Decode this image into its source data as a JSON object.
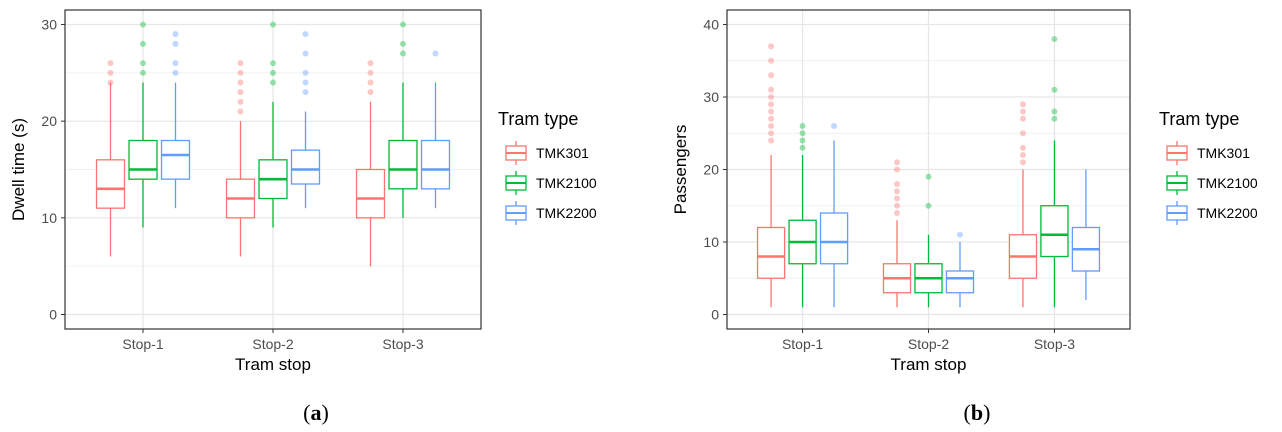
{
  "chart_data": [
    {
      "type": "box",
      "panel_label": "a",
      "xlabel": "Tram stop",
      "ylabel": "Dwell time (s)",
      "ylim": [
        -1.5,
        31.5
      ],
      "yticks": [
        0,
        10,
        20,
        30
      ],
      "categories": [
        "Stop-1",
        "Stop-2",
        "Stop-3"
      ],
      "legend_title": "Tram type",
      "legend_position": "right",
      "grid": true,
      "series": [
        {
          "name": "TMK301",
          "color": "#F8766D",
          "boxes": [
            {
              "min": 6,
              "q1": 11,
              "median": 13,
              "q3": 16,
              "max": 24,
              "outliers": [
                24,
                25,
                26
              ]
            },
            {
              "min": 6,
              "q1": 10,
              "median": 12,
              "q3": 14,
              "max": 20,
              "outliers": [
                21,
                22,
                23,
                24,
                25,
                26
              ]
            },
            {
              "min": 5,
              "q1": 10,
              "median": 12,
              "q3": 15,
              "max": 22,
              "outliers": [
                23,
                24,
                25,
                26
              ]
            }
          ]
        },
        {
          "name": "TMK2100",
          "color": "#00BA38",
          "boxes": [
            {
              "min": 9,
              "q1": 14,
              "median": 15,
              "q3": 18,
              "max": 24,
              "outliers": [
                25,
                26,
                28,
                30
              ]
            },
            {
              "min": 9,
              "q1": 12,
              "median": 14,
              "q3": 16,
              "max": 22,
              "outliers": [
                24,
                25,
                26,
                30
              ]
            },
            {
              "min": 10,
              "q1": 13,
              "median": 15,
              "q3": 18,
              "max": 24,
              "outliers": [
                27,
                28,
                30
              ]
            }
          ]
        },
        {
          "name": "TMK2200",
          "color": "#619CFF",
          "boxes": [
            {
              "min": 11,
              "q1": 14,
              "median": 16.5,
              "q3": 18,
              "max": 24,
              "outliers": [
                25,
                26,
                28,
                29
              ]
            },
            {
              "min": 11,
              "q1": 13.5,
              "median": 15,
              "q3": 17,
              "max": 21,
              "outliers": [
                23,
                24,
                25,
                27,
                29
              ]
            },
            {
              "min": 11,
              "q1": 13,
              "median": 15,
              "q3": 18,
              "max": 24,
              "outliers": [
                27
              ]
            }
          ]
        }
      ]
    },
    {
      "type": "box",
      "panel_label": "b",
      "xlabel": "Tram stop",
      "ylabel": "Passengers",
      "ylim": [
        -2,
        42
      ],
      "yticks": [
        0,
        10,
        20,
        30,
        40
      ],
      "categories": [
        "Stop-1",
        "Stop-2",
        "Stop-3"
      ],
      "legend_title": "Tram type",
      "legend_position": "right",
      "grid": true,
      "series": [
        {
          "name": "TMK301",
          "color": "#F8766D",
          "boxes": [
            {
              "min": 1,
              "q1": 5,
              "median": 8,
              "q3": 12,
              "max": 22,
              "outliers": [
                24,
                25,
                26,
                27,
                28,
                29,
                30,
                31,
                33,
                35,
                37
              ]
            },
            {
              "min": 1,
              "q1": 3,
              "median": 5,
              "q3": 7,
              "max": 13,
              "outliers": [
                14,
                15,
                16,
                17,
                18,
                20,
                21
              ]
            },
            {
              "min": 1,
              "q1": 5,
              "median": 8,
              "q3": 11,
              "max": 20,
              "outliers": [
                21,
                22,
                23,
                25,
                27,
                28,
                29
              ]
            }
          ]
        },
        {
          "name": "TMK2100",
          "color": "#00BA38",
          "boxes": [
            {
              "min": 1,
              "q1": 7,
              "median": 10,
              "q3": 13,
              "max": 22,
              "outliers": [
                23,
                24,
                25,
                26
              ]
            },
            {
              "min": 1,
              "q1": 3,
              "median": 5,
              "q3": 7,
              "max": 11,
              "outliers": [
                15,
                19
              ]
            },
            {
              "min": 1,
              "q1": 8,
              "median": 11,
              "q3": 15,
              "max": 24,
              "outliers": [
                27,
                28,
                31,
                38
              ]
            }
          ]
        },
        {
          "name": "TMK2200",
          "color": "#619CFF",
          "boxes": [
            {
              "min": 1,
              "q1": 7,
              "median": 10,
              "q3": 14,
              "max": 24,
              "outliers": [
                26
              ]
            },
            {
              "min": 1,
              "q1": 3,
              "median": 5,
              "q3": 6,
              "max": 10,
              "outliers": [
                11
              ]
            },
            {
              "min": 2,
              "q1": 6,
              "median": 9,
              "q3": 12,
              "max": 20,
              "outliers": []
            }
          ]
        }
      ]
    }
  ]
}
